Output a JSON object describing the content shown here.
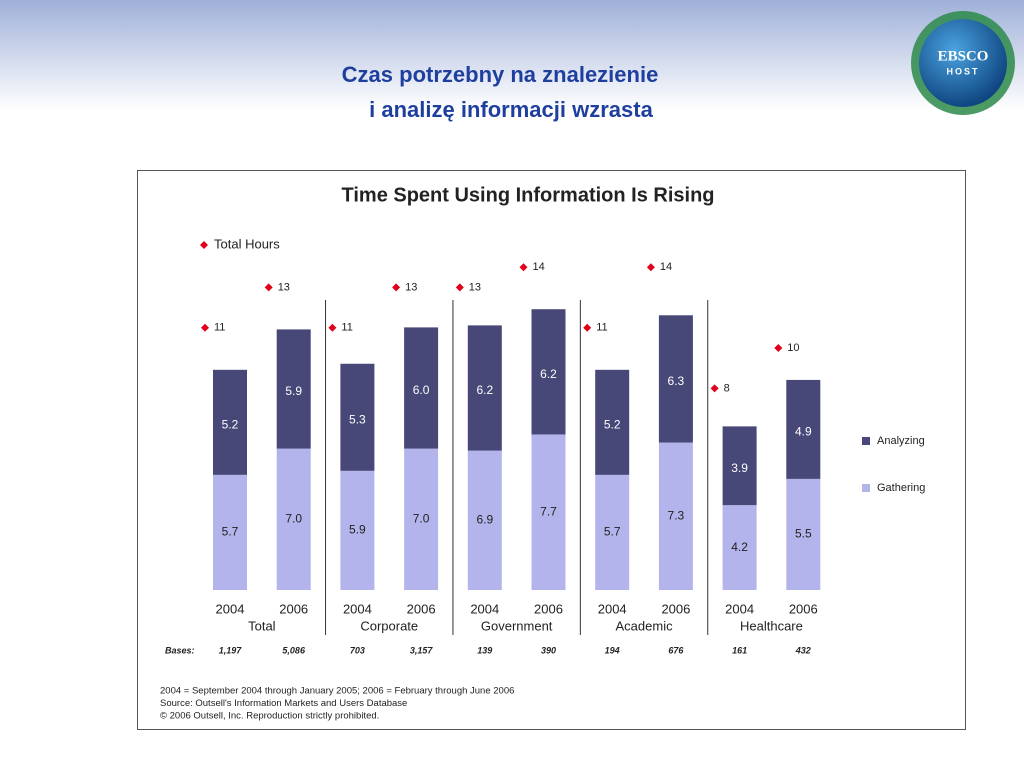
{
  "slide": {
    "title_lines": [
      "Czas potrzebny na znalezienie",
      "i analizę informacji wzrasta"
    ],
    "logo": {
      "name": "EBSCO",
      "sub": "HOST"
    }
  },
  "chart_data": {
    "type": "bar",
    "stacked": true,
    "title": "Time Spent Using Information Is Rising",
    "categories": [
      "2004",
      "2006",
      "2004",
      "2006",
      "2004",
      "2006",
      "2004",
      "2006",
      "2004",
      "2006"
    ],
    "groups": [
      "Total",
      "Corporate",
      "Government",
      "Academic",
      "Healthcare"
    ],
    "series": [
      {
        "name": "Gathering",
        "color": "#b4b4ec",
        "values": [
          5.7,
          7.0,
          5.9,
          7.0,
          6.9,
          7.7,
          5.7,
          7.3,
          4.2,
          5.5
        ],
        "value_labels": [
          "5.7",
          "7.0",
          "5.9",
          "7.0",
          "6.9",
          "7.7",
          "5.7",
          "7.3",
          "4.2",
          "5.5"
        ]
      },
      {
        "name": "Analyzing",
        "color": "#474778",
        "values": [
          5.2,
          5.9,
          5.3,
          6.0,
          6.2,
          6.2,
          5.2,
          6.3,
          3.9,
          4.9
        ],
        "value_labels": [
          "5.2",
          "5.9",
          "5.3",
          "6.0",
          "6.2",
          "6.2",
          "5.2",
          "6.3",
          "3.9",
          "4.9"
        ]
      }
    ],
    "totals": {
      "name": "Total Hours",
      "color": "#e0001a",
      "values": [
        11,
        13,
        11,
        13,
        13,
        14,
        11,
        14,
        8,
        10
      ]
    },
    "bases": {
      "label": "Bases:",
      "values": [
        "1,197",
        "5,086",
        "703",
        "3,157",
        "139",
        "390",
        "194",
        "676",
        "161",
        "432"
      ]
    },
    "footnotes": [
      "2004 = September 2004 through January 2005; 2006 = February through June 2006",
      "Source: Outsell's Information Markets and Users Database",
      "© 2006 Outsell, Inc. Reproduction strictly prohibited."
    ]
  }
}
